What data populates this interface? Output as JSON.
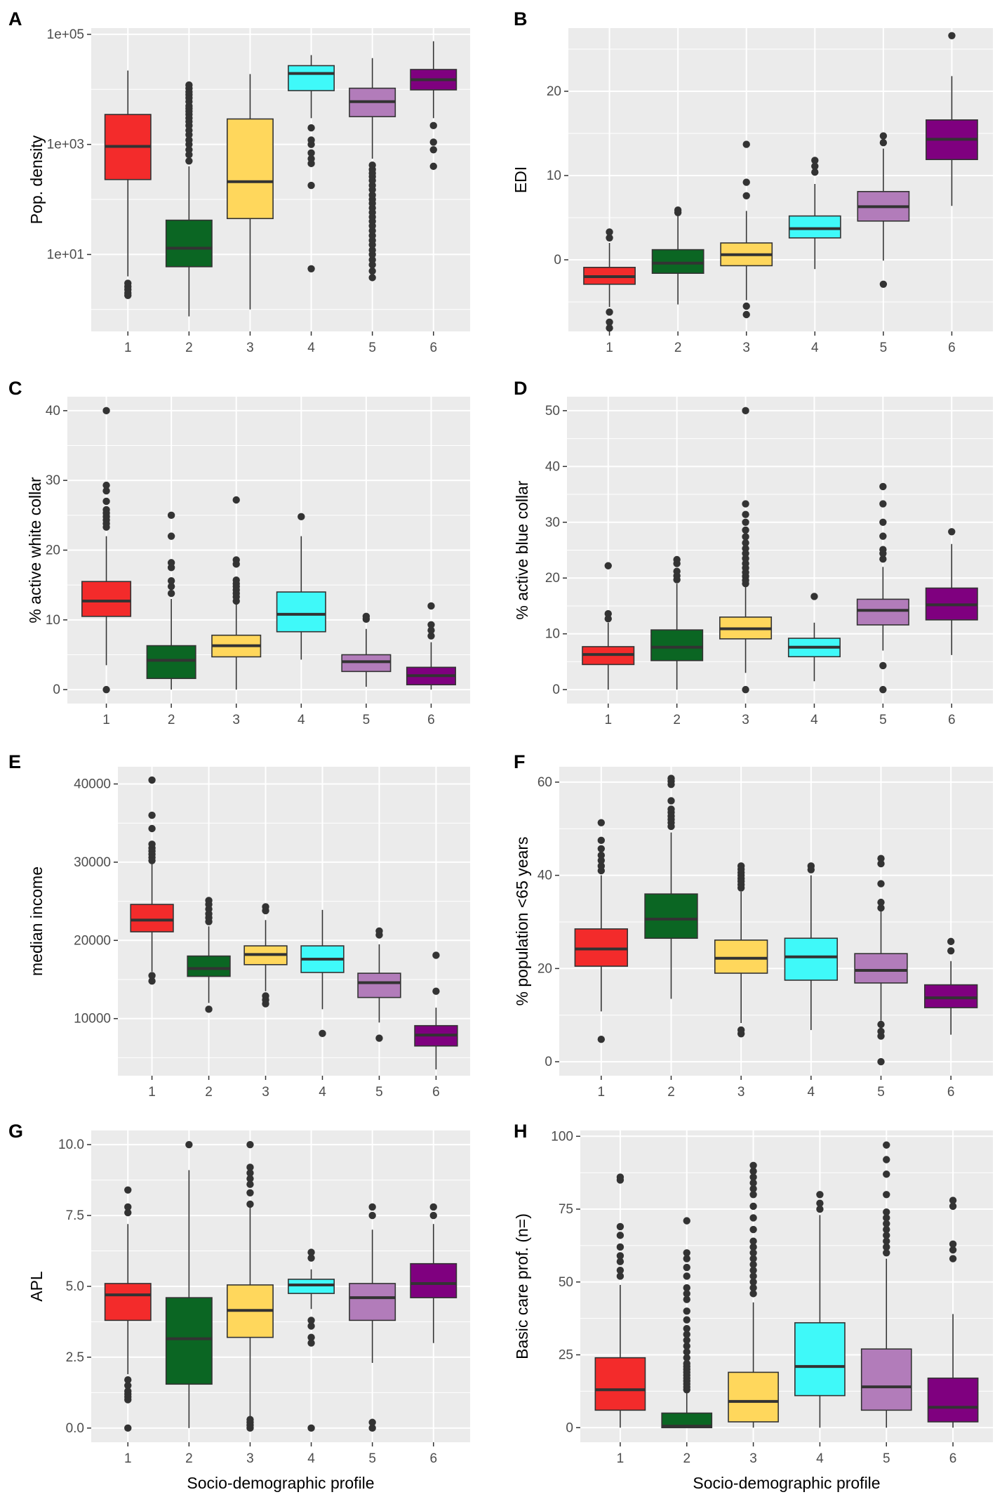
{
  "colors": {
    "panel_bg": "#ebebeb",
    "grid": "#ffffff",
    "whisker": "#333333",
    "outlier": "#333333",
    "box_edge": "#333333",
    "profiles": [
      "#f32b2b",
      "#0b6623",
      "#ffd75c",
      "#3ff9f9",
      "#b27cba",
      "#7f007f"
    ]
  },
  "chart_data": [
    {
      "id": "A",
      "type": "box",
      "letter": "A",
      "ylabel": "Pop. density",
      "xlabel": "",
      "yscale": "log",
      "categories": [
        "1",
        "2",
        "3",
        "4",
        "5",
        "6"
      ],
      "ylim": [
        0.4,
        130000
      ],
      "yticks": [
        10,
        1000,
        100000
      ],
      "ytick_labels": [
        "1e+01",
        "1e+03",
        "1e+05"
      ],
      "minor_yticks": [
        1,
        100,
        10000
      ],
      "boxes": [
        {
          "q1": 230,
          "median": 920,
          "q3": 3500,
          "whisk_lo": 4,
          "whisk_hi": 22000,
          "outliers": [
            1.8,
            2.0,
            2.3,
            2.6,
            3.0
          ]
        },
        {
          "q1": 6,
          "median": 13,
          "q3": 42,
          "whisk_lo": 0.75,
          "whisk_hi": 400,
          "outliers": [
            500,
            650,
            800,
            1000,
            1200,
            1500,
            1800,
            2200,
            2600,
            3000,
            3500,
            4000,
            4500,
            5000,
            6000,
            7000,
            8000,
            9000,
            10500,
            12000
          ]
        },
        {
          "q1": 45,
          "median": 210,
          "q3": 2900,
          "whisk_lo": 1.0,
          "whisk_hi": 19000,
          "outliers": []
        },
        {
          "q1": 9500,
          "median": 19500,
          "q3": 27000,
          "whisk_lo": 3000,
          "whisk_hi": 42000,
          "outliers": [
            5.5,
            180,
            450,
            550,
            700,
            1000,
            1200,
            2000
          ]
        },
        {
          "q1": 3200,
          "median": 6000,
          "q3": 10500,
          "whisk_lo": 550,
          "whisk_hi": 37000,
          "outliers": [
            3.8,
            5,
            6.5,
            8,
            10,
            12,
            15,
            18,
            22,
            27,
            33,
            40,
            48,
            58,
            70,
            85,
            100,
            120,
            150,
            180,
            220,
            260,
            300,
            350,
            420
          ]
        },
        {
          "q1": 9800,
          "median": 15000,
          "q3": 23000,
          "whisk_lo": 3000,
          "whisk_hi": 75000,
          "outliers": [
            400,
            800,
            1100,
            2200
          ]
        }
      ]
    },
    {
      "id": "B",
      "type": "box",
      "letter": "B",
      "ylabel": "EDI",
      "xlabel": "",
      "yscale": "linear",
      "categories": [
        "1",
        "2",
        "3",
        "4",
        "5",
        "6"
      ],
      "ylim": [
        -8.5,
        27.5
      ],
      "yticks": [
        0,
        10,
        20
      ],
      "ytick_labels": [
        "0",
        "10",
        "20"
      ],
      "minor_yticks": [
        -5,
        5,
        15,
        25
      ],
      "boxes": [
        {
          "q1": -2.9,
          "median": -2.0,
          "q3": -0.9,
          "whisk_lo": -5.6,
          "whisk_hi": 2.0,
          "outliers": [
            2.6,
            3.3,
            -6.2,
            -7.4,
            -8.1
          ]
        },
        {
          "q1": -1.6,
          "median": -0.4,
          "q3": 1.2,
          "whisk_lo": -5.3,
          "whisk_hi": 5.3,
          "outliers": [
            5.6,
            5.9
          ]
        },
        {
          "q1": -0.7,
          "median": 0.6,
          "q3": 2.0,
          "whisk_lo": -4.8,
          "whisk_hi": 5.8,
          "outliers": [
            7.6,
            9.2,
            13.7,
            -5.5,
            -6.5
          ]
        },
        {
          "q1": 2.6,
          "median": 3.7,
          "q3": 5.2,
          "whisk_lo": -1.1,
          "whisk_hi": 9.0,
          "outliers": [
            10.4,
            11.1,
            11.8
          ]
        },
        {
          "q1": 4.6,
          "median": 6.3,
          "q3": 8.1,
          "whisk_lo": -0.1,
          "whisk_hi": 13.2,
          "outliers": [
            13.9,
            14.7,
            -2.9
          ]
        },
        {
          "q1": 11.9,
          "median": 14.3,
          "q3": 16.6,
          "whisk_lo": 6.4,
          "whisk_hi": 21.8,
          "outliers": [
            26.6
          ]
        }
      ]
    },
    {
      "id": "C",
      "type": "box",
      "letter": "C",
      "ylabel": "% active white collar",
      "xlabel": "",
      "yscale": "linear",
      "categories": [
        "1",
        "2",
        "3",
        "4",
        "5",
        "6"
      ],
      "ylim": [
        -2,
        42
      ],
      "yticks": [
        0,
        10,
        20,
        30,
        40
      ],
      "ytick_labels": [
        "0",
        "10",
        "20",
        "30",
        "40"
      ],
      "minor_yticks": [
        5,
        15,
        25,
        35
      ],
      "boxes": [
        {
          "q1": 10.5,
          "median": 12.7,
          "q3": 15.5,
          "whisk_lo": 3.5,
          "whisk_hi": 22.0,
          "outliers": [
            0.0,
            23.3,
            23.8,
            24.3,
            24.8,
            25.3,
            25.8,
            27.0,
            28.5,
            29.3,
            40.0
          ]
        },
        {
          "q1": 1.6,
          "median": 4.2,
          "q3": 6.3,
          "whisk_lo": 0.0,
          "whisk_hi": 13.0,
          "outliers": [
            13.8,
            14.8,
            15.6,
            17.5,
            18.2,
            22.0,
            25.0
          ]
        },
        {
          "q1": 4.7,
          "median": 6.3,
          "q3": 7.8,
          "whisk_lo": 0.0,
          "whisk_hi": 12.3,
          "outliers": [
            12.7,
            13.3,
            13.8,
            14.3,
            14.8,
            15.2,
            15.7,
            18.0,
            18.6,
            27.2
          ]
        },
        {
          "q1": 8.3,
          "median": 10.8,
          "q3": 14.0,
          "whisk_lo": 4.3,
          "whisk_hi": 22.0,
          "outliers": [
            24.8
          ]
        },
        {
          "q1": 2.6,
          "median": 4.0,
          "q3": 5.0,
          "whisk_lo": 0.4,
          "whisk_hi": 8.7,
          "outliers": [
            10.1,
            10.5
          ]
        },
        {
          "q1": 0.7,
          "median": 2.0,
          "q3": 3.2,
          "whisk_lo": 0.0,
          "whisk_hi": 6.8,
          "outliers": [
            7.7,
            8.5,
            9.3,
            12.0
          ]
        }
      ]
    },
    {
      "id": "D",
      "type": "box",
      "letter": "D",
      "ylabel": "% active blue collar",
      "xlabel": "",
      "yscale": "linear",
      "categories": [
        "1",
        "2",
        "3",
        "4",
        "5",
        "6"
      ],
      "ylim": [
        -2.5,
        52.5
      ],
      "yticks": [
        0,
        10,
        20,
        30,
        40,
        50
      ],
      "ytick_labels": [
        "0",
        "10",
        "20",
        "30",
        "40",
        "50"
      ],
      "minor_yticks": [
        5,
        15,
        25,
        35,
        45
      ],
      "boxes": [
        {
          "q1": 4.5,
          "median": 6.3,
          "q3": 7.7,
          "whisk_lo": 0.0,
          "whisk_hi": 12.0,
          "outliers": [
            12.7,
            13.6,
            22.2
          ]
        },
        {
          "q1": 5.2,
          "median": 7.6,
          "q3": 10.7,
          "whisk_lo": 0.0,
          "whisk_hi": 19.0,
          "outliers": [
            19.7,
            20.4,
            21.2,
            22.6,
            23.3
          ]
        },
        {
          "q1": 9.1,
          "median": 10.9,
          "q3": 13.0,
          "whisk_lo": 3.0,
          "whisk_hi": 18.4,
          "outliers": [
            0.0,
            19.0,
            19.6,
            20.3,
            21.0,
            21.8,
            22.6,
            23.5,
            24.4,
            25.3,
            26.3,
            27.4,
            28.6,
            30.0,
            31.4,
            33.3,
            50.0
          ]
        },
        {
          "q1": 5.9,
          "median": 7.6,
          "q3": 9.2,
          "whisk_lo": 1.5,
          "whisk_hi": 12.0,
          "outliers": [
            16.7
          ]
        },
        {
          "q1": 11.6,
          "median": 14.2,
          "q3": 16.2,
          "whisk_lo": 7.0,
          "whisk_hi": 22.0,
          "outliers": [
            0.0,
            4.3,
            23.4,
            24.4,
            25.1,
            27.5,
            30.0,
            33.3,
            36.4
          ]
        },
        {
          "q1": 12.5,
          "median": 15.2,
          "q3": 18.2,
          "whisk_lo": 6.2,
          "whisk_hi": 26.1,
          "outliers": [
            28.3
          ]
        }
      ]
    },
    {
      "id": "E",
      "type": "box",
      "letter": "E",
      "ylabel": "median income",
      "xlabel": "",
      "yscale": "linear",
      "categories": [
        "1",
        "2",
        "3",
        "4",
        "5",
        "6"
      ],
      "ylim": [
        2700,
        42200
      ],
      "yticks": [
        10000,
        20000,
        30000,
        40000
      ],
      "ytick_labels": [
        "10000",
        "20000",
        "30000",
        "40000"
      ],
      "minor_yticks": [
        5000,
        15000,
        25000,
        35000
      ],
      "boxes": [
        {
          "q1": 21100,
          "median": 22600,
          "q3": 24600,
          "whisk_lo": 16000,
          "whisk_hi": 29800,
          "outliers": [
            14800,
            15500,
            30200,
            30600,
            31000,
            31400,
            31800,
            32300,
            34300,
            36000,
            40500
          ]
        },
        {
          "q1": 15400,
          "median": 16400,
          "q3": 18000,
          "whisk_lo": 12000,
          "whisk_hi": 21800,
          "outliers": [
            11200,
            22400,
            22900,
            23400,
            24000,
            24600,
            25100
          ]
        },
        {
          "q1": 16900,
          "median": 18200,
          "q3": 19300,
          "whisk_lo": 13500,
          "whisk_hi": 22600,
          "outliers": [
            11900,
            12400,
            12900,
            23800,
            24300
          ]
        },
        {
          "q1": 15900,
          "median": 17600,
          "q3": 19300,
          "whisk_lo": 11200,
          "whisk_hi": 23900,
          "outliers": [
            8100
          ]
        },
        {
          "q1": 12700,
          "median": 14600,
          "q3": 15800,
          "whisk_lo": 9500,
          "whisk_hi": 19500,
          "outliers": [
            7500,
            20700,
            21200
          ]
        },
        {
          "q1": 6500,
          "median": 7900,
          "q3": 9100,
          "whisk_lo": 3500,
          "whisk_hi": 11400,
          "outliers": [
            13500,
            18100
          ]
        }
      ]
    },
    {
      "id": "F",
      "type": "box",
      "letter": "F",
      "ylabel": "% population <65 years",
      "xlabel": "",
      "yscale": "linear",
      "categories": [
        "1",
        "2",
        "3",
        "4",
        "5",
        "6"
      ],
      "ylim": [
        -3,
        63.3
      ],
      "yticks": [
        0,
        20,
        40,
        60
      ],
      "ytick_labels": [
        "0",
        "20",
        "40",
        "60"
      ],
      "minor_yticks": [
        10,
        30,
        50
      ],
      "boxes": [
        {
          "q1": 20.5,
          "median": 24.2,
          "q3": 28.5,
          "whisk_lo": 10.8,
          "whisk_hi": 40.0,
          "outliers": [
            4.8,
            41.0,
            42.0,
            43.2,
            44.3,
            45.7,
            47.5,
            51.3
          ]
        },
        {
          "q1": 26.5,
          "median": 30.6,
          "q3": 36.0,
          "whisk_lo": 13.5,
          "whisk_hi": 49.2,
          "outliers": [
            50.5,
            51.3,
            52.0,
            52.7,
            53.5,
            54.2,
            56.0,
            59.5,
            60.2,
            60.8
          ]
        },
        {
          "q1": 19.0,
          "median": 22.2,
          "q3": 26.1,
          "whisk_lo": 8.3,
          "whisk_hi": 36.5,
          "outliers": [
            6.0,
            6.8,
            37.3,
            38.0,
            38.7,
            39.3,
            40.0,
            40.6,
            41.3,
            42.0
          ]
        },
        {
          "q1": 17.5,
          "median": 22.5,
          "q3": 26.5,
          "whisk_lo": 6.8,
          "whisk_hi": 40.0,
          "outliers": [
            41.2,
            42.0
          ]
        },
        {
          "q1": 16.9,
          "median": 19.6,
          "q3": 23.2,
          "whisk_lo": 8.8,
          "whisk_hi": 32.5,
          "outliers": [
            0.0,
            5.5,
            6.5,
            8.0,
            33.0,
            34.2,
            38.2,
            42.5,
            43.6
          ]
        },
        {
          "q1": 11.6,
          "median": 13.7,
          "q3": 16.5,
          "whisk_lo": 5.8,
          "whisk_hi": 21.6,
          "outliers": [
            23.8,
            25.8
          ]
        }
      ]
    },
    {
      "id": "G",
      "type": "box",
      "letter": "G",
      "ylabel": "APL",
      "xlabel": "Socio-demographic profile",
      "yscale": "linear",
      "categories": [
        "1",
        "2",
        "3",
        "4",
        "5",
        "6"
      ],
      "ylim": [
        -0.5,
        10.5
      ],
      "yticks": [
        0,
        2.5,
        5,
        7.5,
        10
      ],
      "ytick_labels": [
        "0.0",
        "2.5",
        "5.0",
        "7.5",
        "10.0"
      ],
      "minor_yticks": [
        1.25,
        3.75,
        6.25,
        8.75
      ],
      "boxes": [
        {
          "q1": 3.8,
          "median": 4.7,
          "q3": 5.1,
          "whisk_lo": 1.9,
          "whisk_hi": 7.2,
          "outliers": [
            0.0,
            1.0,
            1.1,
            1.2,
            1.3,
            1.5,
            1.7,
            7.6,
            7.8,
            8.4
          ]
        },
        {
          "q1": 1.55,
          "median": 3.15,
          "q3": 4.6,
          "whisk_lo": 0.0,
          "whisk_hi": 9.1,
          "outliers": [
            10.0
          ]
        },
        {
          "q1": 3.2,
          "median": 4.15,
          "q3": 5.05,
          "whisk_lo": 0.4,
          "whisk_hi": 7.8,
          "outliers": [
            0.0,
            0.1,
            0.2,
            0.3,
            7.9,
            8.3,
            8.6,
            8.8,
            9.0,
            9.2,
            10.0
          ]
        },
        {
          "q1": 4.75,
          "median": 5.05,
          "q3": 5.25,
          "whisk_lo": 4.2,
          "whisk_hi": 5.6,
          "outliers": [
            0.0,
            3.0,
            3.2,
            3.6,
            3.8,
            6.0,
            6.2
          ]
        },
        {
          "q1": 3.8,
          "median": 4.6,
          "q3": 5.1,
          "whisk_lo": 2.3,
          "whisk_hi": 7.0,
          "outliers": [
            0.0,
            0.2,
            7.5,
            7.8
          ]
        },
        {
          "q1": 4.6,
          "median": 5.1,
          "q3": 5.8,
          "whisk_lo": 3.0,
          "whisk_hi": 7.2,
          "outliers": [
            7.5,
            7.8
          ]
        }
      ]
    },
    {
      "id": "H",
      "type": "box",
      "letter": "H",
      "ylabel": "Basic care prof. (n=)",
      "xlabel": "Socio-demographic profile",
      "yscale": "linear",
      "categories": [
        "1",
        "2",
        "3",
        "4",
        "5",
        "6"
      ],
      "ylim": [
        -5,
        102
      ],
      "yticks": [
        0,
        25,
        50,
        75,
        100
      ],
      "ytick_labels": [
        "0",
        "25",
        "50",
        "75",
        "100"
      ],
      "minor_yticks": [
        12.5,
        37.5,
        62.5,
        87.5
      ],
      "boxes": [
        {
          "q1": 6,
          "median": 13,
          "q3": 24,
          "whisk_lo": 0,
          "whisk_hi": 49,
          "outliers": [
            52,
            54,
            57,
            59,
            62,
            66,
            69,
            85,
            86
          ]
        },
        {
          "q1": 0,
          "median": 0.5,
          "q3": 5,
          "whisk_lo": 0,
          "whisk_hi": 12,
          "outliers": [
            13,
            14,
            15,
            16,
            17,
            18,
            19,
            20,
            21,
            22,
            24,
            26,
            28,
            30,
            32,
            34,
            37,
            40,
            44,
            46,
            48,
            52,
            55,
            58,
            60,
            71
          ]
        },
        {
          "q1": 2,
          "median": 9,
          "q3": 19,
          "whisk_lo": 0,
          "whisk_hi": 43,
          "outliers": [
            46,
            48,
            50,
            52,
            54,
            56,
            58,
            60,
            62,
            64,
            68,
            72,
            76,
            80,
            82,
            84,
            86,
            88,
            90
          ]
        },
        {
          "q1": 11,
          "median": 21,
          "q3": 36,
          "whisk_lo": 0,
          "whisk_hi": 73,
          "outliers": [
            75,
            77,
            80
          ]
        },
        {
          "q1": 6,
          "median": 14,
          "q3": 27,
          "whisk_lo": 0,
          "whisk_hi": 58,
          "outliers": [
            60,
            62,
            64,
            66,
            68,
            70,
            72,
            74,
            80,
            87,
            92,
            97
          ]
        },
        {
          "q1": 2,
          "median": 7,
          "q3": 17,
          "whisk_lo": 0,
          "whisk_hi": 39,
          "outliers": [
            58,
            61,
            63,
            76,
            78
          ]
        }
      ]
    }
  ]
}
